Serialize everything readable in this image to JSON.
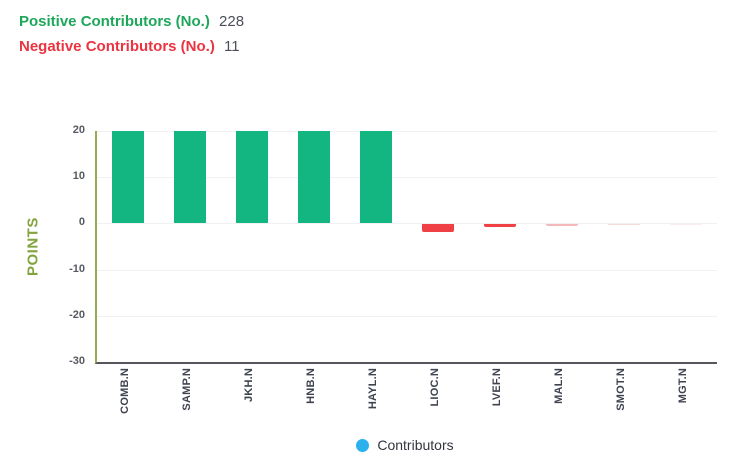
{
  "header": {
    "positive_label": "Positive Contributors (No.)",
    "positive_value": "228",
    "negative_label": "Negative Contributors (No.)",
    "negative_value": "11"
  },
  "legend": {
    "label": "Contributors",
    "dot_color": "#2bb1ee"
  },
  "colors": {
    "positive_title": "#1ea75b",
    "negative_title": "#ec3340",
    "value_text": "#4c4f57",
    "axis_title": "#83a33d",
    "y_axis_line": "#93ad51",
    "x_axis_line": "#55575c",
    "grid": "#f1f1f3",
    "tick_text": "#565960",
    "x_tick_text": "#3f4350",
    "positive_bar": "#13b581",
    "negative_bar": "#ef4145"
  },
  "chart_data": {
    "type": "bar",
    "title": "",
    "xlabel": "",
    "ylabel": "POINTS",
    "ylim": [
      -30,
      20
    ],
    "yticks": [
      20,
      10,
      0,
      -10,
      -20,
      -30
    ],
    "grid": true,
    "legend_position": "bottom",
    "clipped_at_ymax": true,
    "categories": [
      "COMB.N",
      "SAMP.N",
      "JKH.N",
      "HNB.N",
      "HAYL.N",
      "LIOC.N",
      "LVEF.N",
      "MAL.N",
      "SMOT.N",
      "MGT.N"
    ],
    "values": [
      20,
      20,
      20,
      20,
      20,
      -1.7,
      -0.6,
      -0.3,
      -0.15,
      -0.08
    ],
    "bar_colors": [
      "#13b581",
      "#13b581",
      "#13b581",
      "#13b581",
      "#13b581",
      "#ef4145",
      "#ef4145",
      "#f5b8ba",
      "#f3dadb",
      "#f9eeee"
    ]
  }
}
